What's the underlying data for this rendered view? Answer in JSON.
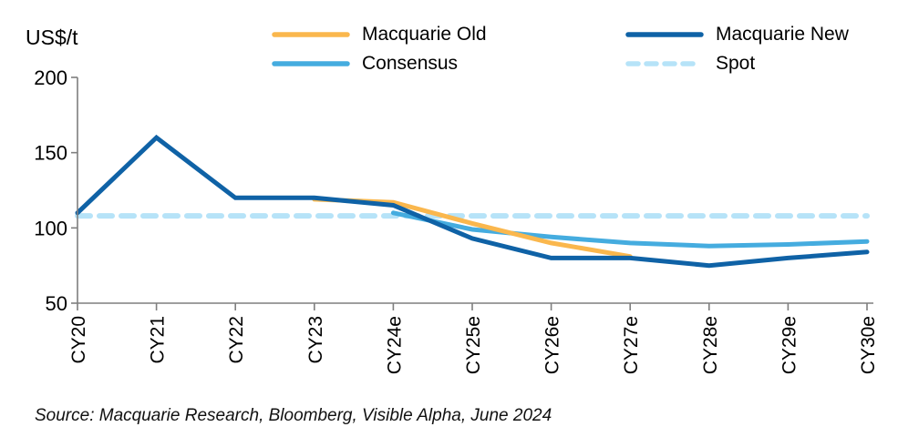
{
  "header": {
    "unit_label": "US$/t"
  },
  "legend": {
    "position": "top",
    "items": [
      {
        "label": "Macquarie Old",
        "color": "#FAB74D",
        "style": "solid"
      },
      {
        "label": "Macquarie New",
        "color": "#0F62A6",
        "style": "solid"
      },
      {
        "label": "Consensus",
        "color": "#45ACDF",
        "style": "solid"
      },
      {
        "label": "Spot",
        "color": "#B6E3F8",
        "style": "dashed"
      }
    ]
  },
  "chart_data": {
    "type": "line",
    "title": "",
    "ylabel": "US$/t",
    "xlabel": "",
    "grid": false,
    "legend_position": "top",
    "ylim": [
      50,
      200
    ],
    "y_ticks": [
      "200",
      "150",
      "100",
      "50"
    ],
    "y_tick_values": [
      200,
      150,
      100,
      50
    ],
    "categories": [
      "CY20",
      "CY21",
      "CY22",
      "CY23",
      "CY24e",
      "CY25e",
      "CY26e",
      "CY27e",
      "CY28e",
      "CY29e",
      "CY30e"
    ],
    "series": [
      {
        "name": "Spot",
        "color": "#B6E3F8",
        "dash": true,
        "values": [
          108,
          108,
          108,
          108,
          108,
          108,
          108,
          108,
          108,
          108,
          108
        ]
      },
      {
        "name": "Consensus",
        "color": "#45ACDF",
        "dash": false,
        "values": [
          null,
          null,
          null,
          null,
          110,
          99,
          94,
          90,
          88,
          89,
          91
        ]
      },
      {
        "name": "Macquarie Old",
        "color": "#FAB74D",
        "dash": false,
        "values": [
          null,
          null,
          null,
          119,
          117,
          103,
          90,
          81,
          null,
          null,
          null
        ]
      },
      {
        "name": "Macquarie New",
        "color": "#0F62A6",
        "dash": false,
        "values": [
          110,
          160,
          120,
          120,
          115,
          93,
          80,
          80,
          75,
          80,
          84
        ]
      }
    ],
    "axis_color": "#7F7F7F"
  },
  "footer": {
    "source": "Source: Macquarie Research, Bloomberg, Visible Alpha, June 2024"
  }
}
